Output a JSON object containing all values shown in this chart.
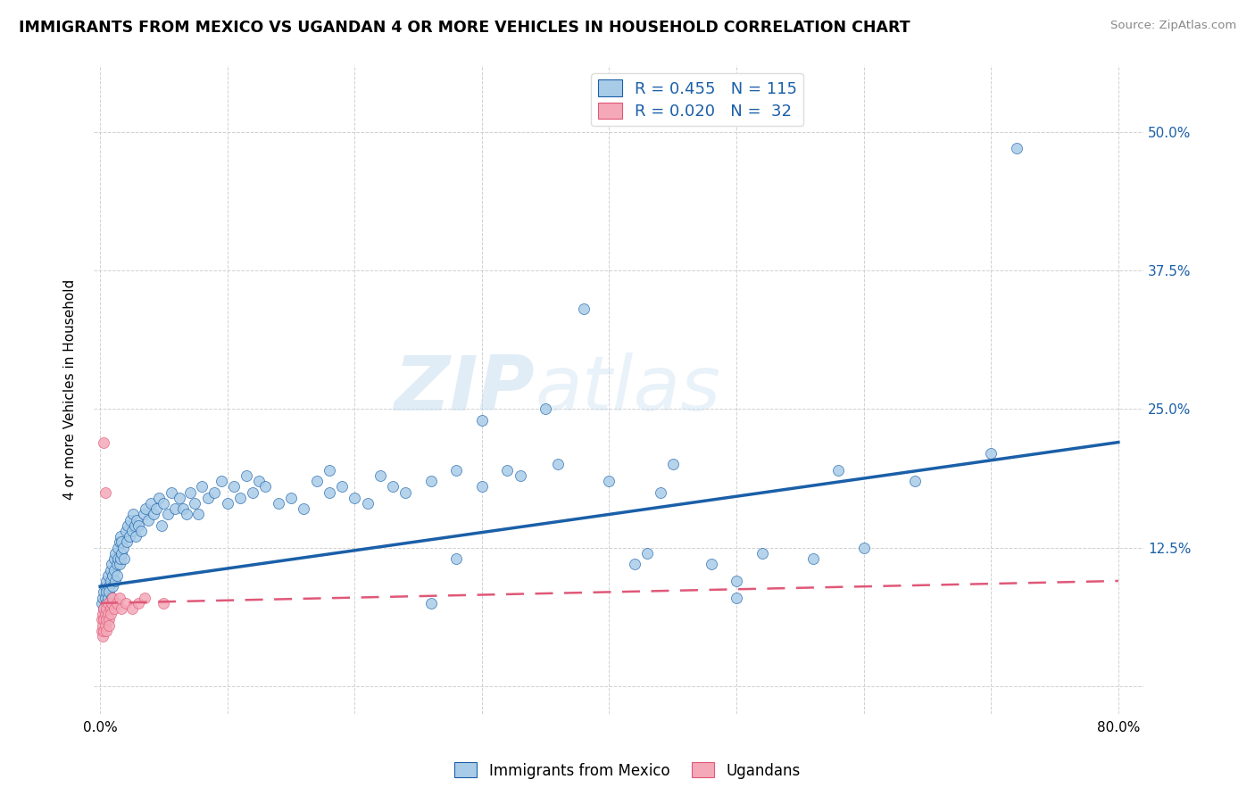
{
  "title": "IMMIGRANTS FROM MEXICO VS UGANDAN 4 OR MORE VEHICLES IN HOUSEHOLD CORRELATION CHART",
  "source": "Source: ZipAtlas.com",
  "ylabel": "4 or more Vehicles in Household",
  "legend_label1": "Immigrants from Mexico",
  "legend_label2": "Ugandans",
  "R1": 0.455,
  "N1": 115,
  "R2": 0.02,
  "N2": 32,
  "color_mexico": "#a8cce8",
  "color_uganda": "#f4a8b8",
  "line_mexico_color": "#1a5fa8",
  "line_uganda_color": "#e05878",
  "watermark_zip": "ZIP",
  "watermark_atlas": "atlas",
  "background_color": "#ffffff",
  "xlim": [
    -0.005,
    0.82
  ],
  "ylim": [
    -0.025,
    0.56
  ],
  "xticks": [
    0.0,
    0.1,
    0.2,
    0.3,
    0.4,
    0.5,
    0.6,
    0.7,
    0.8
  ],
  "yticks": [
    0.0,
    0.125,
    0.25,
    0.375,
    0.5
  ],
  "xticklabels": [
    "0.0%",
    "",
    "",
    "",
    "",
    "",
    "",
    "",
    "80.0%"
  ],
  "yticklabels_right": [
    "",
    "12.5%",
    "25.0%",
    "37.5%",
    "50.0%"
  ],
  "mexico_x": [
    0.001,
    0.002,
    0.003,
    0.003,
    0.004,
    0.004,
    0.005,
    0.005,
    0.005,
    0.006,
    0.006,
    0.007,
    0.007,
    0.007,
    0.008,
    0.008,
    0.009,
    0.009,
    0.01,
    0.01,
    0.011,
    0.011,
    0.012,
    0.012,
    0.013,
    0.013,
    0.014,
    0.014,
    0.015,
    0.015,
    0.016,
    0.016,
    0.017,
    0.017,
    0.018,
    0.019,
    0.02,
    0.021,
    0.022,
    0.023,
    0.024,
    0.025,
    0.026,
    0.027,
    0.028,
    0.029,
    0.03,
    0.032,
    0.034,
    0.036,
    0.038,
    0.04,
    0.042,
    0.044,
    0.046,
    0.048,
    0.05,
    0.053,
    0.056,
    0.059,
    0.062,
    0.065,
    0.068,
    0.071,
    0.074,
    0.077,
    0.08,
    0.085,
    0.09,
    0.095,
    0.1,
    0.105,
    0.11,
    0.115,
    0.12,
    0.125,
    0.13,
    0.14,
    0.15,
    0.16,
    0.17,
    0.18,
    0.19,
    0.2,
    0.21,
    0.22,
    0.23,
    0.24,
    0.26,
    0.28,
    0.3,
    0.33,
    0.36,
    0.4,
    0.44,
    0.48,
    0.52,
    0.58,
    0.64,
    0.7,
    0.72,
    0.3,
    0.35,
    0.42,
    0.5,
    0.38,
    0.28,
    0.45,
    0.5,
    0.56,
    0.32,
    0.18,
    0.26,
    0.43,
    0.6
  ],
  "mexico_y": [
    0.075,
    0.08,
    0.085,
    0.07,
    0.09,
    0.08,
    0.095,
    0.075,
    0.085,
    0.1,
    0.08,
    0.09,
    0.075,
    0.085,
    0.095,
    0.105,
    0.08,
    0.11,
    0.1,
    0.09,
    0.115,
    0.105,
    0.095,
    0.12,
    0.11,
    0.1,
    0.125,
    0.115,
    0.13,
    0.11,
    0.135,
    0.115,
    0.12,
    0.13,
    0.125,
    0.115,
    0.14,
    0.13,
    0.145,
    0.135,
    0.15,
    0.14,
    0.155,
    0.145,
    0.135,
    0.15,
    0.145,
    0.14,
    0.155,
    0.16,
    0.15,
    0.165,
    0.155,
    0.16,
    0.17,
    0.145,
    0.165,
    0.155,
    0.175,
    0.16,
    0.17,
    0.16,
    0.155,
    0.175,
    0.165,
    0.155,
    0.18,
    0.17,
    0.175,
    0.185,
    0.165,
    0.18,
    0.17,
    0.19,
    0.175,
    0.185,
    0.18,
    0.165,
    0.17,
    0.16,
    0.185,
    0.175,
    0.18,
    0.17,
    0.165,
    0.19,
    0.18,
    0.175,
    0.185,
    0.195,
    0.18,
    0.19,
    0.2,
    0.185,
    0.175,
    0.11,
    0.12,
    0.195,
    0.185,
    0.21,
    0.485,
    0.24,
    0.25,
    0.11,
    0.08,
    0.34,
    0.115,
    0.2,
    0.095,
    0.115,
    0.195,
    0.195,
    0.075,
    0.12,
    0.125
  ],
  "uganda_x": [
    0.001,
    0.001,
    0.002,
    0.002,
    0.002,
    0.003,
    0.003,
    0.003,
    0.004,
    0.004,
    0.005,
    0.005,
    0.005,
    0.006,
    0.006,
    0.007,
    0.007,
    0.008,
    0.008,
    0.009,
    0.01,
    0.011,
    0.013,
    0.015,
    0.017,
    0.02,
    0.025,
    0.03,
    0.035,
    0.05,
    0.003,
    0.004
  ],
  "uganda_y": [
    0.06,
    0.05,
    0.065,
    0.055,
    0.045,
    0.07,
    0.06,
    0.05,
    0.065,
    0.055,
    0.07,
    0.06,
    0.05,
    0.065,
    0.075,
    0.06,
    0.055,
    0.07,
    0.065,
    0.075,
    0.08,
    0.07,
    0.075,
    0.08,
    0.07,
    0.075,
    0.07,
    0.075,
    0.08,
    0.075,
    0.22,
    0.175
  ]
}
